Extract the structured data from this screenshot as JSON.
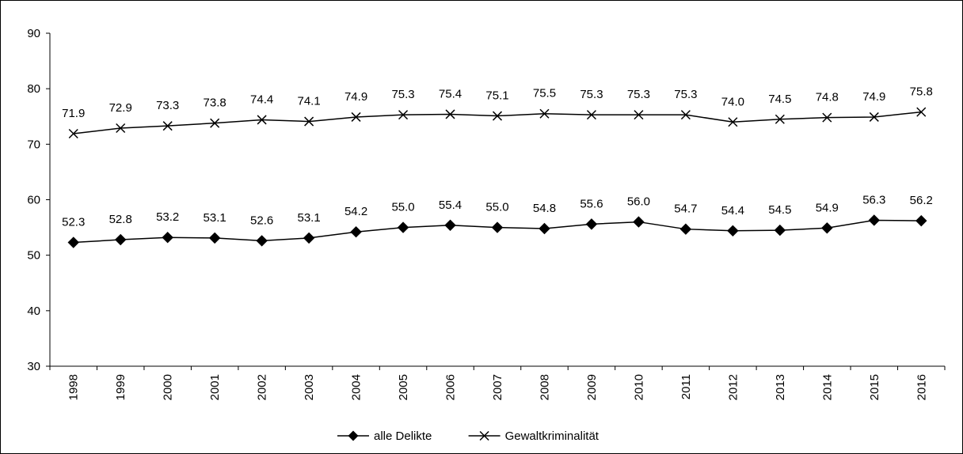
{
  "chart_data": {
    "type": "line",
    "title": "",
    "xlabel": "",
    "ylabel": "",
    "ylim": [
      30,
      90
    ],
    "yticks": [
      30,
      40,
      50,
      60,
      70,
      80,
      90
    ],
    "categories": [
      "1998",
      "1999",
      "2000",
      "2001",
      "2002",
      "2003",
      "2004",
      "2005",
      "2006",
      "2007",
      "2008",
      "2009",
      "2010",
      "2011",
      "2012",
      "2013",
      "2014",
      "2015",
      "2016"
    ],
    "series": [
      {
        "name": "alle Delikte",
        "marker": "diamond",
        "color": "#000000",
        "values": [
          52.3,
          52.8,
          53.2,
          53.1,
          52.6,
          53.1,
          54.2,
          55.0,
          55.4,
          55.0,
          54.8,
          55.6,
          56.0,
          54.7,
          54.4,
          54.5,
          54.9,
          56.3,
          56.2
        ],
        "labels": [
          "52.3",
          "52.8",
          "53.2",
          "53.1",
          "52.6",
          "53.1",
          "54.2",
          "55.0",
          "55.4",
          "55.0",
          "54.8",
          "55.6",
          "56.0",
          "54.7",
          "54.4",
          "54.5",
          "54.9",
          "56.3",
          "56.2"
        ]
      },
      {
        "name": "Gewaltkriminalität",
        "marker": "x",
        "color": "#000000",
        "values": [
          71.9,
          72.9,
          73.3,
          73.8,
          74.4,
          74.1,
          74.9,
          75.3,
          75.4,
          75.1,
          75.5,
          75.3,
          75.3,
          75.3,
          74.0,
          74.5,
          74.8,
          74.9,
          75.8
        ],
        "labels": [
          "71.9",
          "72.9",
          "73.3",
          "73.8",
          "74.4",
          "74.1",
          "74.9",
          "75.3",
          "75.4",
          "75.1",
          "75.5",
          "75.3",
          "75.3",
          "75.3",
          "74.0",
          "74.5",
          "74.8",
          "74.9",
          "75.8"
        ]
      }
    ],
    "grid": false,
    "legend_position": "bottom"
  }
}
